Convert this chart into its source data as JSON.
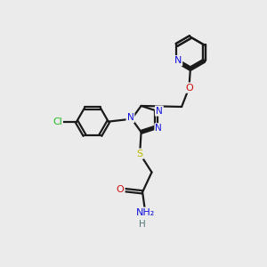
{
  "background_color": "#ebebeb",
  "bond_color": "#1a1a1a",
  "bond_width": 1.6,
  "colors": {
    "N": "#1010dd",
    "O": "#cc1111",
    "S": "#bbbb00",
    "Cl": "#22bb22",
    "H": "#557777",
    "C": "#1a1a1a"
  },
  "figsize": [
    3.0,
    3.0
  ],
  "dpi": 100,
  "xlim": [
    0,
    10
  ],
  "ylim": [
    0,
    10
  ]
}
